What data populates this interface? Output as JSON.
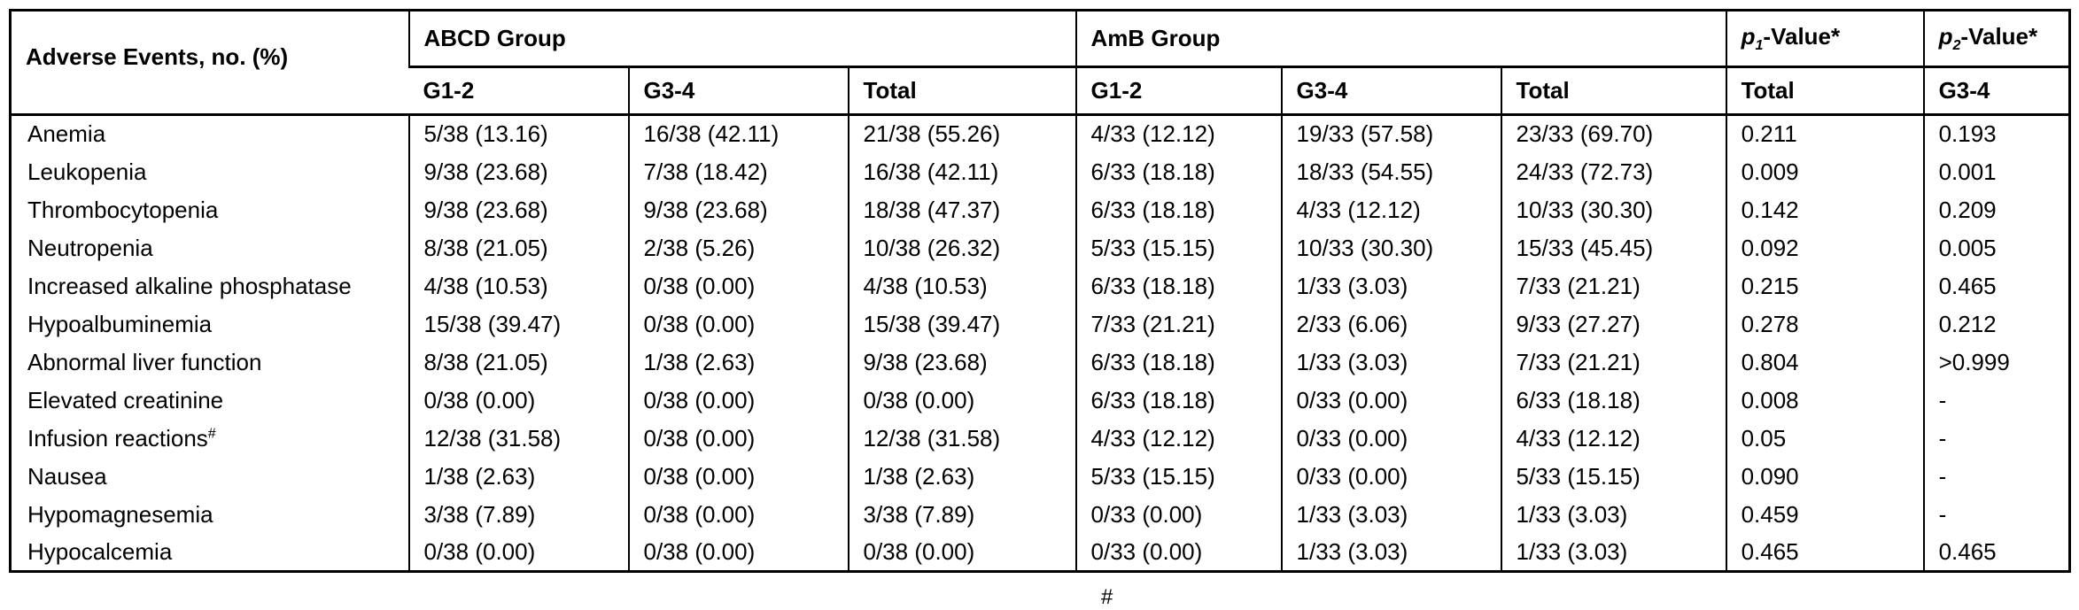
{
  "colors": {
    "border": "#000000",
    "text": "#000000",
    "background": "#ffffff"
  },
  "chart_data": {
    "type": "table",
    "corner_header": "Adverse Events, no. (%)",
    "column_groups": [
      {
        "label": "ABCD Group",
        "span": 3
      },
      {
        "label": "AmB Group",
        "span": 3
      }
    ],
    "p_value_headers": [
      {
        "p": "p",
        "sub": "1",
        "rest": "-Value*"
      },
      {
        "p": "p",
        "sub": "2",
        "rest": "-Value*"
      }
    ],
    "subheaders": [
      "G1-2",
      "G3-4",
      "Total",
      "G1-2",
      "G3-4",
      "Total",
      "Total",
      "G3-4"
    ],
    "rows": [
      {
        "label": "Anemia",
        "cells": [
          "5/38 (13.16)",
          "16/38 (42.11)",
          "21/38 (55.26)",
          "4/33 (12.12)",
          "19/33 (57.58)",
          "23/33 (69.70)",
          "0.211",
          "0.193"
        ]
      },
      {
        "label": "Leukopenia",
        "cells": [
          "9/38 (23.68)",
          "7/38 (18.42)",
          "16/38 (42.11)",
          "6/33 (18.18)",
          "18/33 (54.55)",
          "24/33 (72.73)",
          "0.009",
          "0.001"
        ]
      },
      {
        "label": "Thrombocytopenia",
        "cells": [
          "9/38 (23.68)",
          "9/38 (23.68)",
          "18/38 (47.37)",
          "6/33 (18.18)",
          "4/33 (12.12)",
          "10/33 (30.30)",
          "0.142",
          "0.209"
        ]
      },
      {
        "label": "Neutropenia",
        "cells": [
          "8/38 (21.05)",
          "2/38 (5.26)",
          "10/38 (26.32)",
          "5/33 (15.15)",
          "10/33 (30.30)",
          "15/33 (45.45)",
          "0.092",
          "0.005"
        ]
      },
      {
        "label": "Increased alkaline phosphatase",
        "cells": [
          "4/38 (10.53)",
          "0/38 (0.00)",
          "4/38 (10.53)",
          "6/33 (18.18)",
          "1/33 (3.03)",
          "7/33 (21.21)",
          "0.215",
          "0.465"
        ]
      },
      {
        "label": "Hypoalbuminemia",
        "cells": [
          "15/38 (39.47)",
          "0/38 (0.00)",
          "15/38 (39.47)",
          "7/33 (21.21)",
          "2/33 (6.06)",
          "9/33 (27.27)",
          "0.278",
          "0.212"
        ]
      },
      {
        "label": "Abnormal liver function",
        "cells": [
          "8/38 (21.05)",
          "1/38 (2.63)",
          "9/38 (23.68)",
          "6/33 (18.18)",
          "1/33 (3.03)",
          "7/33 (21.21)",
          "0.804",
          ">0.999"
        ]
      },
      {
        "label": "Elevated creatinine",
        "cells": [
          "0/38 (0.00)",
          "0/38 (0.00)",
          "0/38 (0.00)",
          "6/33 (18.18)",
          "0/33 (0.00)",
          "6/33 (18.18)",
          "0.008",
          "-"
        ]
      },
      {
        "label": "Infusion reactions",
        "label_sup": "#",
        "cells": [
          "12/38 (31.58)",
          "0/38 (0.00)",
          "12/38 (31.58)",
          "4/33 (12.12)",
          "0/33 (0.00)",
          "4/33 (12.12)",
          "0.05",
          "-"
        ]
      },
      {
        "label": "Nausea",
        "cells": [
          "1/38 (2.63)",
          "0/38 (0.00)",
          "1/38 (2.63)",
          "5/33 (15.15)",
          "0/33 (0.00)",
          "5/33 (15.15)",
          "0.090",
          "-"
        ]
      },
      {
        "label": "Hypomagnesemia",
        "cells": [
          "3/38 (7.89)",
          "0/38 (0.00)",
          "3/38 (7.89)",
          "0/33 (0.00)",
          "1/33 (3.03)",
          "1/33 (3.03)",
          "0.459",
          "-"
        ]
      },
      {
        "label": "Hypocalcemia",
        "cells": [
          "0/38 (0.00)",
          "0/38 (0.00)",
          "0/38 (0.00)",
          "0/33 (0.00)",
          "1/33 (3.03)",
          "1/33 (3.03)",
          "0.465",
          "0.465"
        ]
      }
    ]
  },
  "footer": {
    "cropped_mark": "#"
  }
}
